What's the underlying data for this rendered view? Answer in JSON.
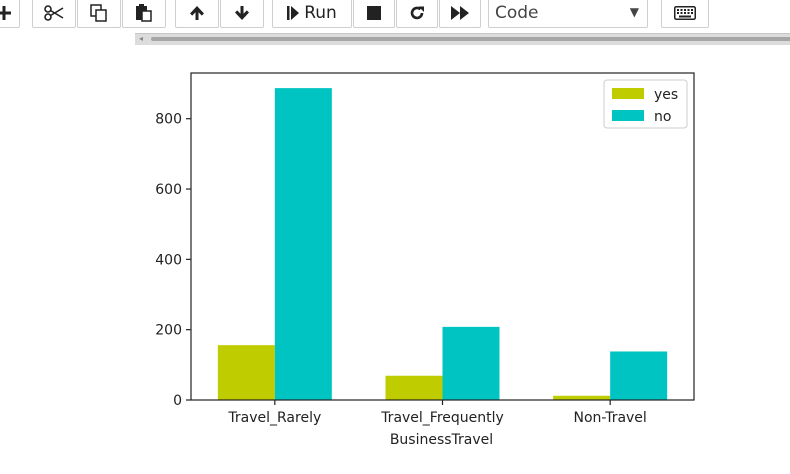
{
  "toolbar": {
    "run_label": "Run",
    "cell_type": "Code",
    "buttons": [
      {
        "icon": "plus-icon"
      },
      {
        "icon": "scissors-icon"
      },
      {
        "icon": "copy-icon"
      },
      {
        "icon": "paste-icon"
      },
      {
        "icon": "arrow-up-icon"
      },
      {
        "icon": "arrow-down-icon"
      },
      {
        "icon": "step-forward-icon"
      },
      {
        "icon": "stop-icon"
      },
      {
        "icon": "restart-icon"
      },
      {
        "icon": "fast-forward-icon"
      },
      {
        "icon": "keyboard-icon"
      }
    ]
  },
  "chart_data": {
    "type": "bar",
    "categories": [
      "Travel_Rarely",
      "Travel_Frequently",
      "Non-Travel"
    ],
    "series": [
      {
        "name": "yes",
        "values": [
          156,
          69,
          12
        ],
        "color": "#bfcc00"
      },
      {
        "name": "no",
        "values": [
          887,
          208,
          138
        ],
        "color": "#00c4c1"
      }
    ],
    "title": "",
    "xlabel": "BusinessTravel",
    "ylabel": "",
    "ylim": [
      0,
      930
    ],
    "yticks": [
      0,
      200,
      400,
      600,
      800
    ],
    "grid": false,
    "legend_position": "top-right"
  }
}
